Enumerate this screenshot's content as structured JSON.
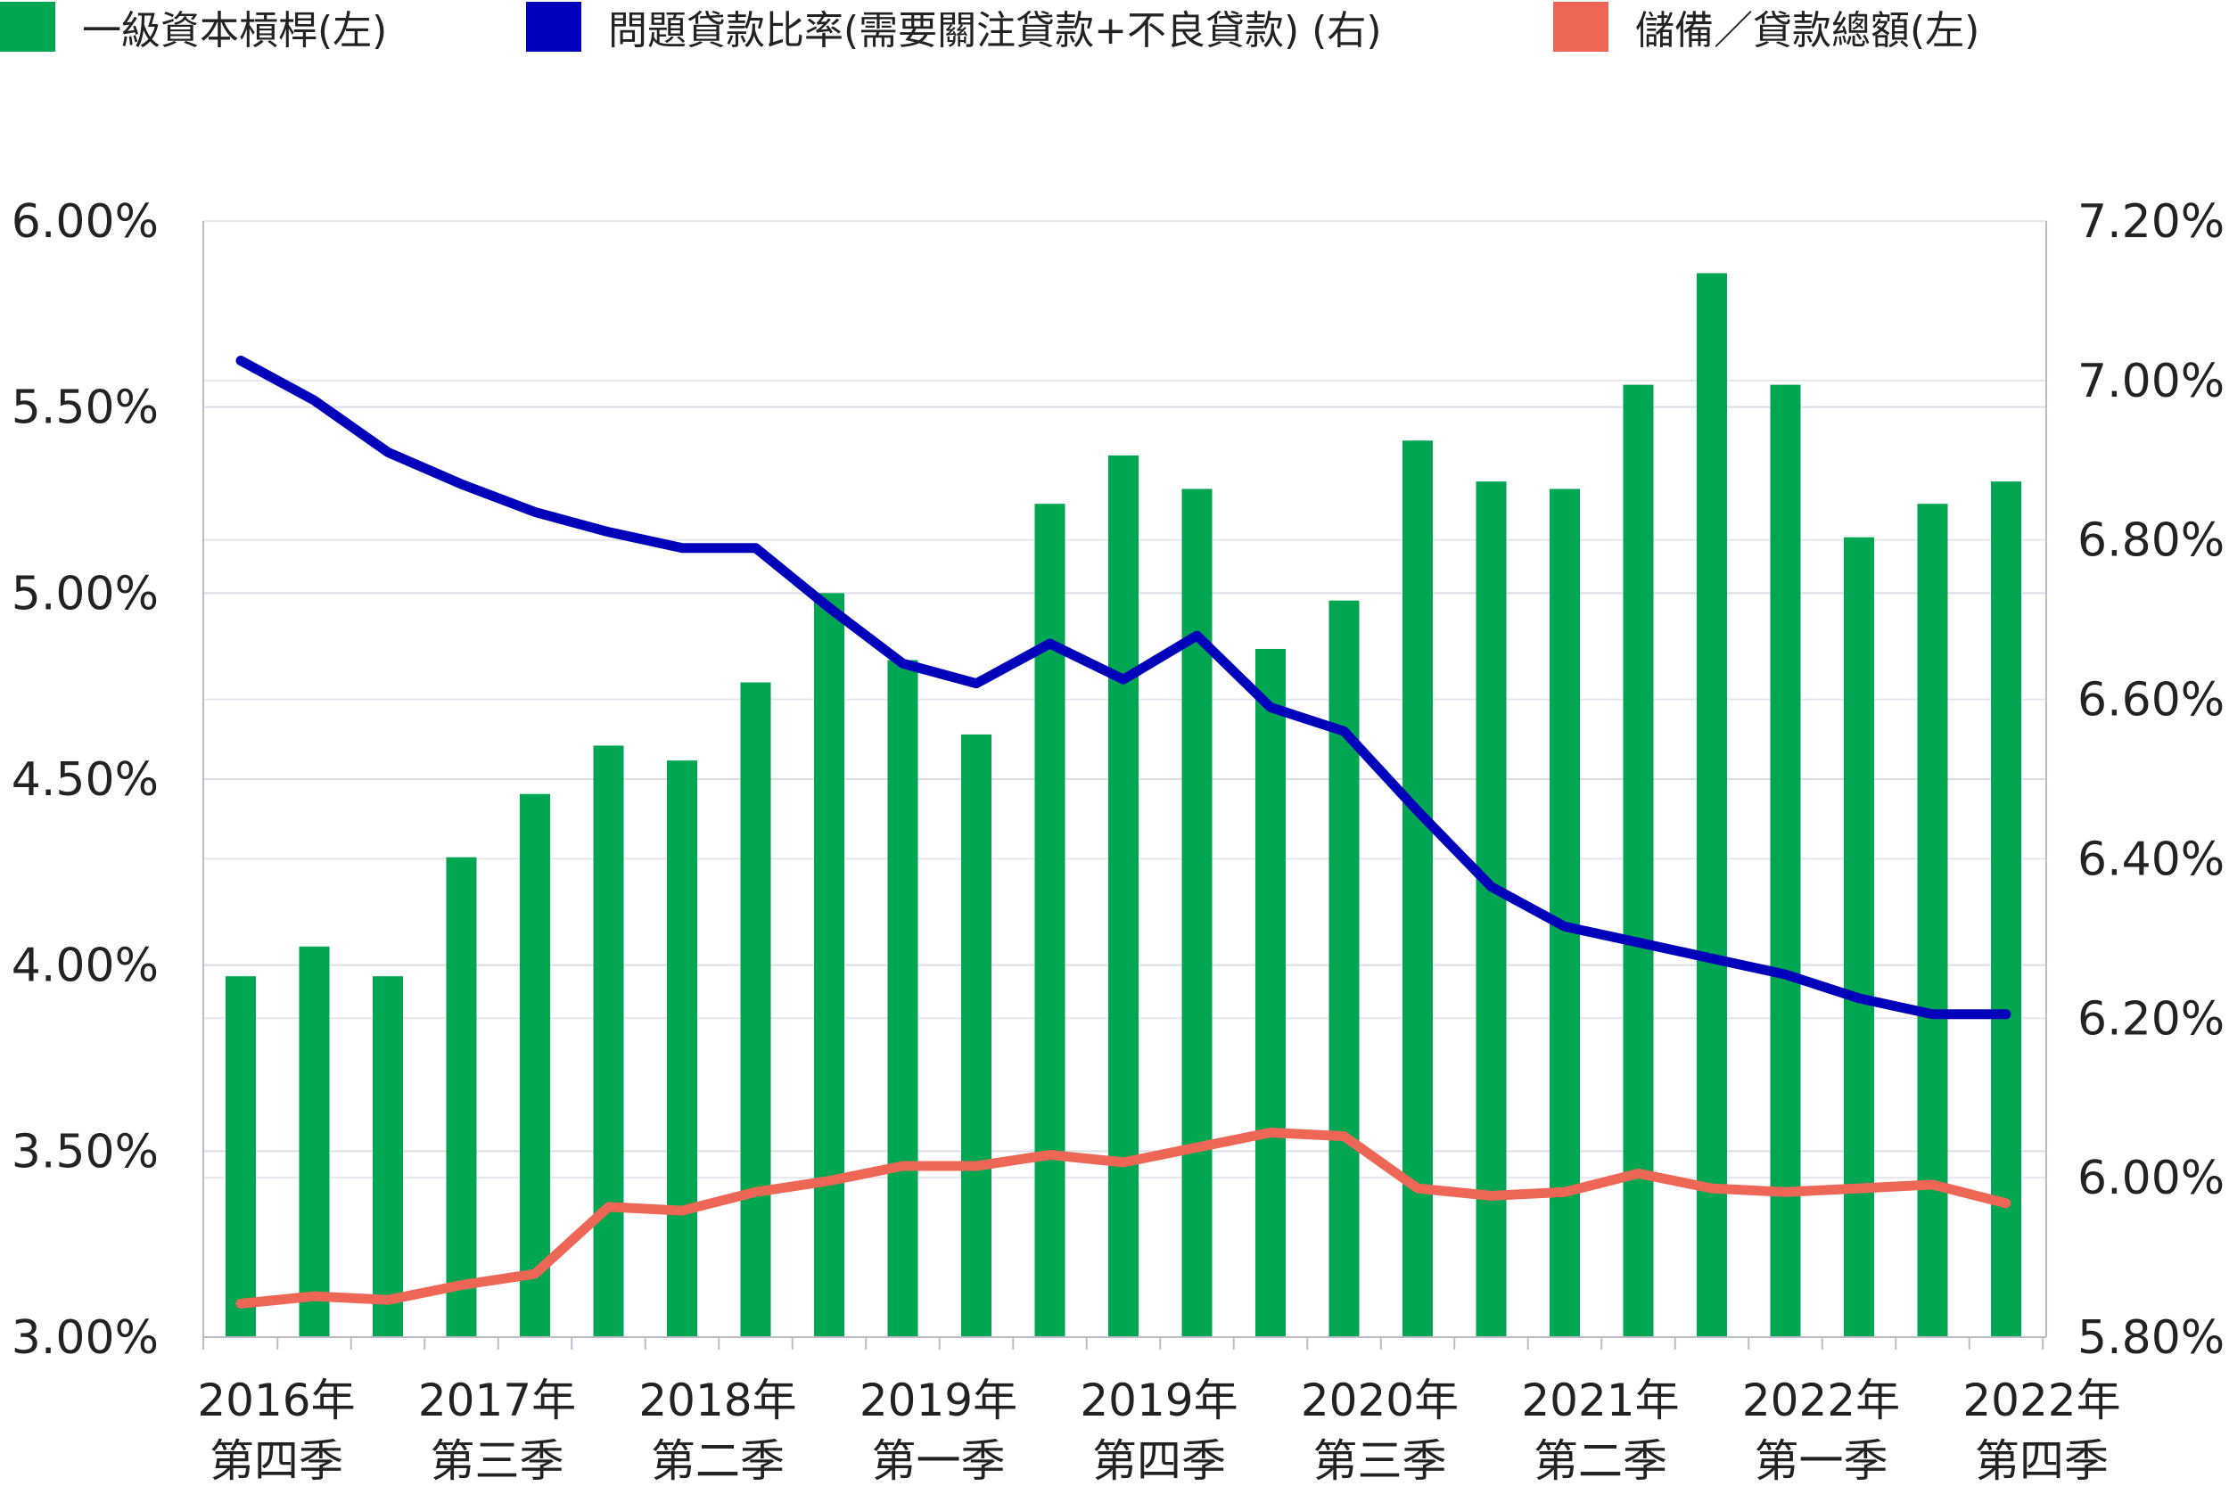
{
  "legend": {
    "items": [
      {
        "label": "一級資本槓桿(左)",
        "color": "#00A651"
      },
      {
        "label": "問題貸款比率(需要關注貸款+不良貸款) (右)",
        "color": "#0000BB"
      },
      {
        "label": "儲備／貸款總額(左)",
        "color": "#EE6655"
      }
    ]
  },
  "chart_data": {
    "type": "bar",
    "y_left": {
      "ylim": [
        3.0,
        6.0
      ],
      "ticks": [
        "3.00%",
        "3.50%",
        "4.00%",
        "4.50%",
        "5.00%",
        "5.50%",
        "6.00%"
      ],
      "tick_values": [
        3.0,
        3.5,
        4.0,
        4.5,
        5.0,
        5.5,
        6.0
      ]
    },
    "y_right": {
      "ylim": [
        5.8,
        7.2
      ],
      "ticks": [
        "5.80%",
        "6.00%",
        "6.20%",
        "6.40%",
        "6.60%",
        "6.80%",
        "7.00%",
        "7.20%"
      ],
      "tick_values": [
        5.8,
        6.0,
        6.2,
        6.4,
        6.6,
        6.8,
        7.0,
        7.2
      ]
    },
    "x_labels": [
      {
        "index": 0,
        "line1": "2016年",
        "line2": "第四季"
      },
      {
        "index": 3,
        "line1": "2017年",
        "line2": "第三季"
      },
      {
        "index": 6,
        "line1": "2018年",
        "line2": "第二季"
      },
      {
        "index": 9,
        "line1": "2019年",
        "line2": "第一季"
      },
      {
        "index": 12,
        "line1": "2019年",
        "line2": "第四季"
      },
      {
        "index": 15,
        "line1": "2020年",
        "line2": "第三季"
      },
      {
        "index": 18,
        "line1": "2021年",
        "line2": "第二季"
      },
      {
        "index": 21,
        "line1": "2022年",
        "line2": "第一季"
      },
      {
        "index": 24,
        "line1": "2022年",
        "line2": "第四季"
      }
    ],
    "series": [
      {
        "name": "一級資本槓桿(左)",
        "type": "bar",
        "axis": "left",
        "color": "#00A651",
        "values": [
          3.97,
          4.05,
          3.97,
          4.29,
          4.46,
          4.59,
          4.55,
          4.76,
          5.0,
          4.82,
          4.62,
          5.24,
          5.37,
          5.28,
          4.85,
          4.98,
          5.41,
          5.3,
          5.28,
          5.56,
          5.86,
          5.56,
          5.15,
          5.24,
          5.3
        ]
      },
      {
        "name": "問題貸款比率(需要關注貸款+不良貸款) (右)",
        "type": "line",
        "axis": "right",
        "color": "#0000BB",
        "values": [
          7.025,
          6.975,
          6.91,
          6.87,
          6.835,
          6.81,
          6.79,
          6.79,
          6.715,
          6.645,
          6.62,
          6.67,
          6.625,
          6.68,
          6.59,
          6.56,
          6.46,
          6.365,
          6.315,
          6.295,
          6.275,
          6.255,
          6.225,
          6.205,
          6.205
        ]
      },
      {
        "name": "儲備／貸款總額(左)",
        "type": "line",
        "axis": "left",
        "color": "#EE6655",
        "values": [
          3.09,
          3.11,
          3.1,
          3.14,
          3.17,
          3.35,
          3.34,
          3.39,
          3.42,
          3.46,
          3.46,
          3.49,
          3.47,
          3.51,
          3.55,
          3.54,
          3.4,
          3.38,
          3.39,
          3.44,
          3.4,
          3.39,
          3.4,
          3.41,
          3.36
        ]
      }
    ],
    "grid": true
  }
}
